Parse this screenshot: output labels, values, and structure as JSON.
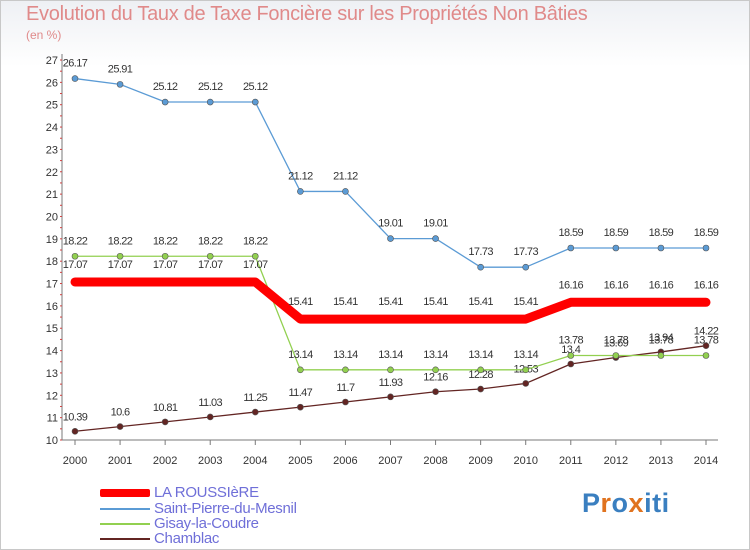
{
  "chart_data": {
    "type": "line",
    "title": "Evolution du Taux de Taxe Foncière sur les Propriétés Non Bâties",
    "ylabel": "(en %)",
    "xlabel": "",
    "ylim": [
      10,
      27
    ],
    "yticks": [
      10,
      11,
      12,
      13,
      14,
      15,
      16,
      17,
      18,
      19,
      20,
      21,
      22,
      23,
      24,
      25,
      26,
      27
    ],
    "x": [
      "2000",
      "2001",
      "2002",
      "2003",
      "2004",
      "2005",
      "2006",
      "2007",
      "2008",
      "2009",
      "2010",
      "2011",
      "2012",
      "2013",
      "2014"
    ],
    "series": [
      {
        "name": "LA ROUSSIèRE",
        "color": "#ff0000",
        "values": [
          17.07,
          17.07,
          17.07,
          17.07,
          17.07,
          15.41,
          15.41,
          15.41,
          15.41,
          15.41,
          15.41,
          16.16,
          16.16,
          16.16,
          16.16
        ],
        "labels": [
          "17.07",
          "17.07",
          "17.07",
          "17.07",
          "17.07",
          "15.41",
          "15.41",
          "15.41",
          "15.41",
          "15.41",
          "15.41",
          "16.16",
          "16.16",
          "16.16",
          "16.16"
        ]
      },
      {
        "name": "Saint-Pierre-du-Mesnil",
        "color": "#5b9bd5",
        "values": [
          26.17,
          25.91,
          25.12,
          25.12,
          25.12,
          21.12,
          21.12,
          19.01,
          19.01,
          17.73,
          17.73,
          18.59,
          18.59,
          18.59,
          18.59
        ],
        "labels": [
          "26.17",
          "25.91",
          "25.12",
          "25.12",
          "25.12",
          "21.12",
          "21.12",
          "19.01",
          "19.01",
          "17.73",
          "17.73",
          "18.59",
          "18.59",
          "18.59",
          "18.59"
        ]
      },
      {
        "name": "Gisay-la-Coudre",
        "color": "#92d050",
        "values": [
          18.22,
          18.22,
          18.22,
          18.22,
          18.22,
          13.14,
          13.14,
          13.14,
          13.14,
          13.14,
          13.14,
          13.78,
          13.78,
          13.78,
          13.78
        ],
        "labels": [
          "18.22",
          "18.22",
          "18.22",
          "18.22",
          "18.22",
          "13.14",
          "13.14",
          "13.14",
          "13.14",
          "13.14",
          "13.14",
          "13.78",
          "13.78",
          "13.78",
          "13.78"
        ]
      },
      {
        "name": "Chamblac",
        "color": "#632523",
        "values": [
          10.39,
          10.6,
          10.81,
          11.03,
          11.25,
          11.47,
          11.7,
          11.93,
          12.16,
          12.28,
          12.53,
          13.4,
          13.69,
          13.94,
          14.22
        ],
        "labels": [
          "10.39",
          "10.6",
          "10.81",
          "11.03",
          "11.25",
          "11.47",
          "11.7",
          "11.93",
          "12.16",
          "12.28",
          "12.53",
          "13.4",
          "13.69",
          "13.94",
          "14.22"
        ]
      }
    ],
    "legend_position": "bottom-left",
    "grid": false
  },
  "legend": {
    "items": [
      "LA ROUSSIèRE",
      "Saint-Pierre-du-Mesnil",
      "Gisay-la-Coudre",
      "Chamblac"
    ]
  },
  "logo": {
    "text": "Proxiti",
    "letters": [
      "P",
      "r",
      "o",
      "x",
      "i",
      "t",
      "i"
    ],
    "colors": [
      "#3a7fc0",
      "#e0731f",
      "#3a7fc0",
      "#e0731f",
      "#3a7fc0",
      "#3a7fc0",
      "#3a7fc0"
    ]
  }
}
